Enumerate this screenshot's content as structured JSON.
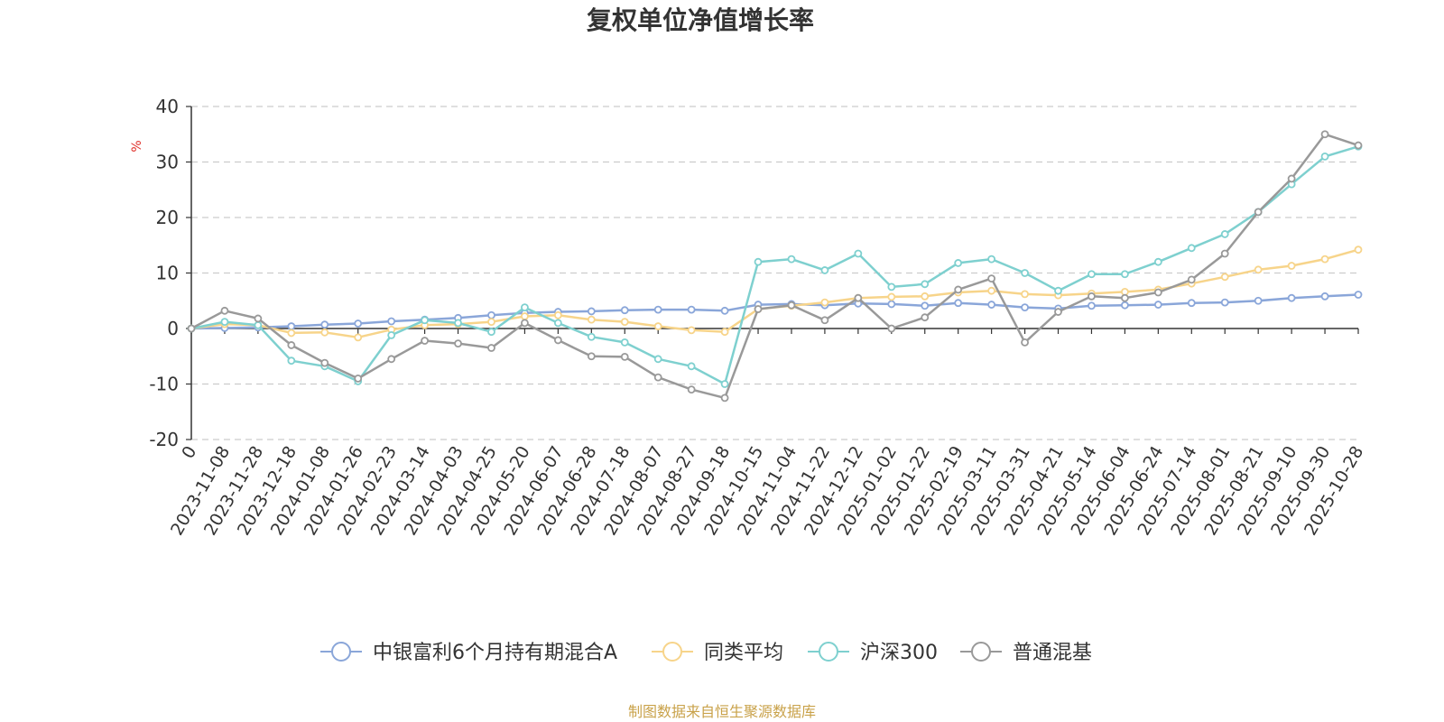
{
  "chart_data": {
    "type": "line",
    "title": "复权单位净值增长率",
    "ylabel": "%",
    "ylim": [
      -20,
      40
    ],
    "yticks": [
      -20,
      -10,
      0,
      10,
      20,
      30,
      40
    ],
    "grid": true,
    "legend_position": "bottom",
    "x_start_label": "0",
    "x_tick_labels": [
      "2023-11-08",
      "2023-11-28",
      "2023-12-18",
      "2024-01-08",
      "2024-01-26",
      "2024-02-23",
      "2024-03-14",
      "2024-04-03",
      "2024-04-25",
      "2024-05-20",
      "2024-06-07",
      "2024-06-28",
      "2024-07-18",
      "2024-08-07",
      "2024-08-27",
      "2024-09-18",
      "2024-10-15",
      "2024-11-04",
      "2024-11-22",
      "2024-12-12",
      "2025-01-02",
      "2025-01-22",
      "2025-02-19",
      "2025-03-11",
      "2025-03-31",
      "2025-04-21",
      "2025-05-14",
      "2025-06-04",
      "2025-06-24",
      "2025-07-14",
      "2025-08-01",
      "2025-08-21",
      "2025-09-10",
      "2025-09-30",
      "2025-10-28"
    ],
    "x": [
      "0",
      "2023-11-08",
      "2023-11-28",
      "2023-12-18",
      "2024-01-08",
      "2024-01-26",
      "2024-02-23",
      "2024-03-14",
      "2024-04-03",
      "2024-04-25",
      "2024-05-20",
      "2024-06-07",
      "2024-06-28",
      "2024-07-18",
      "2024-08-07",
      "2024-08-27",
      "2024-09-18",
      "2024-10-15",
      "2024-11-04",
      "2024-11-22",
      "2024-12-12",
      "2025-01-02",
      "2025-01-22",
      "2025-02-19",
      "2025-03-11",
      "2025-03-31",
      "2025-04-21",
      "2025-05-14",
      "2025-06-04",
      "2025-06-24",
      "2025-07-14",
      "2025-08-01",
      "2025-08-21",
      "2025-09-10",
      "2025-09-30",
      "2025-10-28"
    ],
    "series": [
      {
        "name": "中银富利6个月持有期混合A",
        "color": "#8aa6d9",
        "values": [
          0,
          0.1,
          0.2,
          0.4,
          0.7,
          0.9,
          1.3,
          1.6,
          1.9,
          2.4,
          2.8,
          3.0,
          3.1,
          3.3,
          3.4,
          3.4,
          3.2,
          4.3,
          4.4,
          4.2,
          4.5,
          4.4,
          4.1,
          4.6,
          4.3,
          3.8,
          3.6,
          4.1,
          4.2,
          4.3,
          4.6,
          4.7,
          5.0,
          5.5,
          5.8,
          6.1
        ]
      },
      {
        "name": "同类平均",
        "color": "#f7d48a",
        "values": [
          0,
          0.8,
          0.6,
          -0.8,
          -0.7,
          -1.6,
          -0.2,
          0.6,
          0.8,
          1.2,
          2.2,
          2.4,
          1.6,
          1.2,
          0.4,
          -0.3,
          -0.6,
          3.5,
          4.1,
          4.7,
          5.5,
          5.7,
          5.8,
          6.5,
          6.8,
          6.2,
          6.0,
          6.3,
          6.6,
          7.0,
          8.1,
          9.3,
          10.6,
          11.3,
          12.5,
          14.2
        ]
      },
      {
        "name": "沪深300",
        "color": "#7ed0cf",
        "values": [
          0,
          1.2,
          0.6,
          -5.8,
          -6.8,
          -9.5,
          -1.2,
          1.5,
          1.0,
          -0.6,
          3.8,
          1.0,
          -1.5,
          -2.5,
          -5.5,
          -6.8,
          -10.0,
          12.0,
          12.5,
          10.5,
          13.5,
          7.5,
          8.0,
          11.8,
          12.5,
          10.0,
          6.8,
          9.8,
          9.8,
          12.0,
          14.5,
          17.0,
          21.0,
          26.0,
          31.0,
          32.8
        ]
      },
      {
        "name": "普通混基",
        "color": "#999999",
        "values": [
          0,
          3.2,
          1.8,
          -3.0,
          -6.2,
          -9.0,
          -5.5,
          -2.2,
          -2.7,
          -3.5,
          1.0,
          -2.1,
          -5.0,
          -5.1,
          -8.8,
          -11.0,
          -12.5,
          3.5,
          4.2,
          1.5,
          5.5,
          0.0,
          2.0,
          7.0,
          9.0,
          -2.5,
          3.0,
          5.8,
          5.5,
          6.5,
          8.8,
          13.5,
          21.0,
          27.0,
          35.0,
          33.0
        ]
      }
    ]
  },
  "legend": [
    {
      "label": "中银富利6个月持有期混合A",
      "color": "#8aa6d9"
    },
    {
      "label": "同类平均",
      "color": "#f7d48a"
    },
    {
      "label": "沪深300",
      "color": "#7ed0cf"
    },
    {
      "label": "普通混基",
      "color": "#999999"
    }
  ],
  "source": "制图数据来自恒生聚源数据库"
}
